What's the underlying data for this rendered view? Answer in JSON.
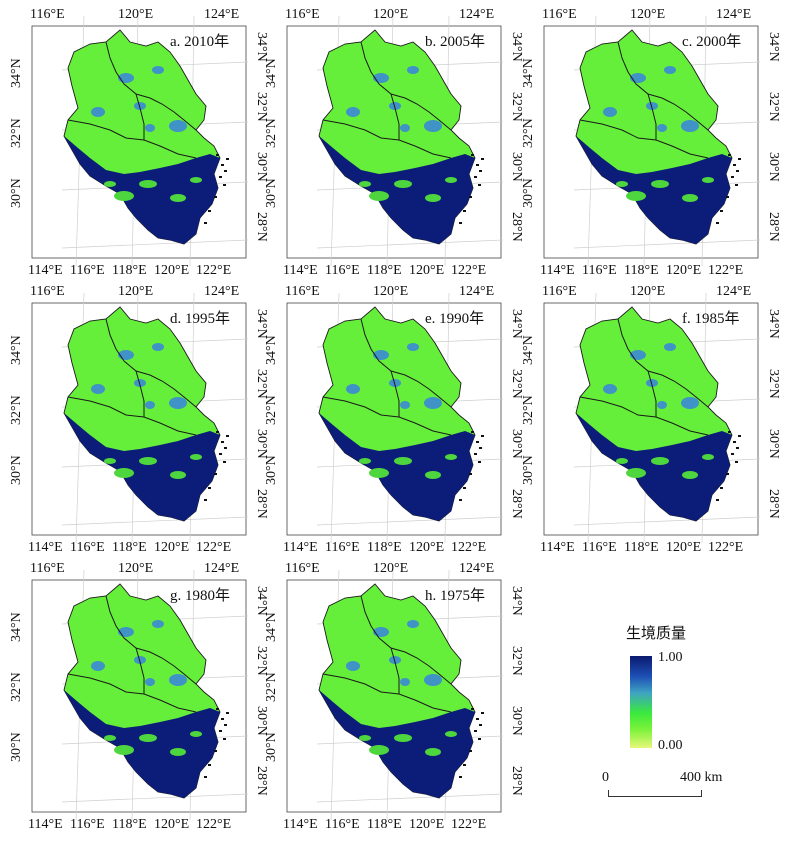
{
  "panels": [
    {
      "label": "a. 2010年"
    },
    {
      "label": "b. 2005年"
    },
    {
      "label": "c. 2000年"
    },
    {
      "label": "d. 1995年"
    },
    {
      "label": "e. 1990年"
    },
    {
      "label": "f. 1985年"
    },
    {
      "label": "g. 1980年"
    },
    {
      "label": "h. 1975年"
    }
  ],
  "axes": {
    "top_labels": [
      "116°E",
      "120°E",
      "124°E"
    ],
    "bottom_labels": [
      "114°E",
      "116°E",
      "118°E",
      "120°E",
      "122°E"
    ],
    "left_labels": [
      "34°N",
      "32°N",
      "30°N"
    ],
    "right_labels": [
      "34°N",
      "32°N",
      "30°N",
      "28°N"
    ]
  },
  "legend": {
    "title": "生境质量",
    "max_label": "1.00",
    "min_label": "0.00",
    "colors": [
      "#0a1a6e",
      "#1e4fb5",
      "#3fa3c2",
      "#39e93c",
      "#7cf23a",
      "#e8f77a"
    ]
  },
  "scalebar": {
    "zero_label": "0",
    "distance_label": "400 km"
  }
}
